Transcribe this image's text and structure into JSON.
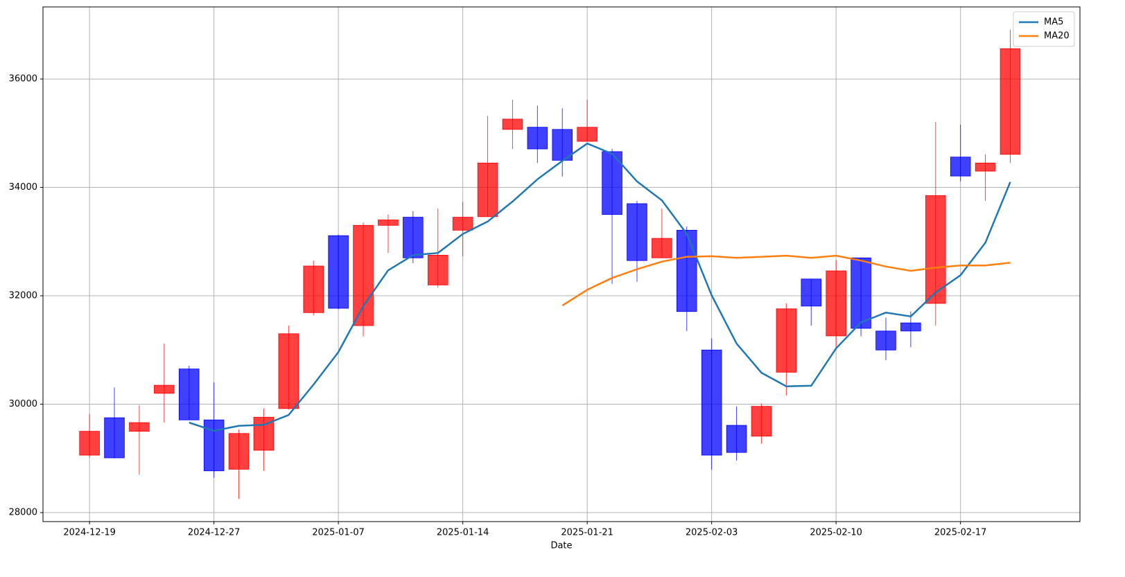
{
  "chart_data": {
    "type": "candlestick",
    "xlabel": "Date",
    "categories": [
      "2024-12-19",
      null,
      null,
      null,
      null,
      "2024-12-27",
      null,
      null,
      null,
      null,
      "2025-01-07",
      null,
      null,
      null,
      null,
      "2025-01-14",
      null,
      null,
      null,
      null,
      "2025-01-21",
      null,
      null,
      null,
      null,
      "2025-02-03",
      null,
      null,
      null,
      null,
      "2025-02-10",
      null,
      null,
      null,
      null,
      "2025-02-17",
      null,
      null
    ],
    "open": [
      29060,
      29750,
      29500,
      30200,
      30650,
      29710,
      28800,
      29150,
      29920,
      31690,
      33110,
      31450,
      33300,
      33450,
      32200,
      33210,
      33460,
      35070,
      35110,
      35070,
      34850,
      34660,
      33700,
      32700,
      33210,
      31000,
      29610,
      29410,
      30590,
      32310,
      31260,
      32700,
      31350,
      31500,
      31860,
      34560,
      34300,
      34610
    ],
    "high": [
      29820,
      30310,
      29980,
      31120,
      30710,
      30400,
      29530,
      29920,
      31450,
      32650,
      33130,
      33350,
      33500,
      33560,
      33610,
      33730,
      35320,
      35620,
      35510,
      35460,
      35620,
      34710,
      33750,
      33610,
      33280,
      31210,
      29960,
      30010,
      31860,
      32310,
      32650,
      32700,
      31600,
      31710,
      35210,
      35160,
      34610,
      36910
    ],
    "low": [
      29020,
      29000,
      28700,
      29660,
      29710,
      28640,
      28250,
      28770,
      29900,
      31640,
      31750,
      31250,
      32790,
      32600,
      32150,
      32730,
      33460,
      34710,
      34450,
      34200,
      34850,
      32220,
      32260,
      32700,
      31350,
      28790,
      28960,
      29270,
      30160,
      31450,
      31000,
      31250,
      30810,
      31050,
      31450,
      34110,
      33750,
      34450
    ],
    "close": [
      29500,
      29010,
      29660,
      30350,
      29710,
      28770,
      29460,
      29760,
      31300,
      32550,
      31770,
      33300,
      33400,
      32700,
      32750,
      33450,
      34450,
      35260,
      34710,
      34500,
      35110,
      33500,
      32650,
      33060,
      31710,
      29060,
      29110,
      29960,
      31760,
      31810,
      32460,
      31400,
      31000,
      31350,
      33850,
      34210,
      34450,
      36560
    ],
    "up_color": "#ff0000",
    "down_color": "#0000ff",
    "series": [
      {
        "name": "MA5",
        "color": "#1f77b4",
        "values": [
          null,
          null,
          null,
          null,
          29660,
          29510,
          29600,
          29620,
          29800,
          30360,
          30960,
          31810,
          32470,
          32750,
          32790,
          33140,
          33370,
          33740,
          34150,
          34490,
          34810,
          34620,
          34110,
          33760,
          33140,
          32010,
          31120,
          30580,
          30330,
          30340,
          31030,
          31510,
          31690,
          31620,
          32060,
          32380,
          32980,
          34100
        ]
      },
      {
        "name": "MA20",
        "color": "#ff7f0e",
        "values": [
          null,
          null,
          null,
          null,
          null,
          null,
          null,
          null,
          null,
          null,
          null,
          null,
          null,
          null,
          null,
          null,
          null,
          null,
          null,
          31820,
          32110,
          32330,
          32490,
          32630,
          32720,
          32730,
          32700,
          32720,
          32740,
          32700,
          32740,
          32650,
          32540,
          32460,
          32520,
          32560,
          32560,
          32610
        ]
      }
    ],
    "ylim": [
      27834,
      37330
    ],
    "yticks": [
      28000,
      30000,
      32000,
      34000,
      36000
    ],
    "grid": true,
    "legend": "upper right"
  }
}
